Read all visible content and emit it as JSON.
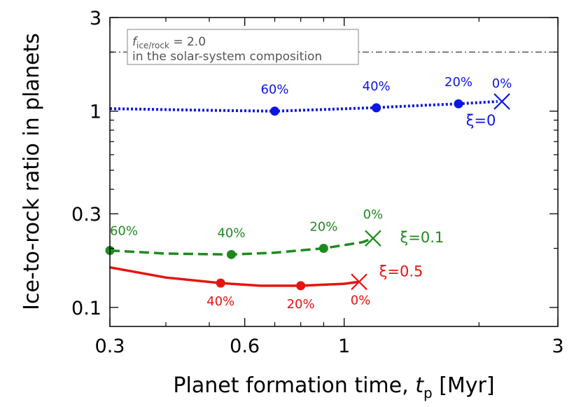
{
  "chart_data": {
    "type": "line",
    "xlabel_main": "Planet formation time, ",
    "xlabel_var": "t",
    "xlabel_sub": "p",
    "xlabel_unit": " [Myr]",
    "ylabel": "Ice-to-rock ratio in planets",
    "xscale": "log",
    "yscale": "log",
    "xlim": [
      0.3,
      3
    ],
    "ylim": [
      0.08,
      3
    ],
    "xticks": [
      {
        "v": 0.3,
        "label": "0.3"
      },
      {
        "v": 0.6,
        "label": "0.6"
      },
      {
        "v": 1,
        "label": "1"
      },
      {
        "v": 3,
        "label": "3"
      }
    ],
    "yticks": [
      {
        "v": 0.1,
        "label": "0.1"
      },
      {
        "v": 0.3,
        "label": "0.3"
      },
      {
        "v": 1,
        "label": "1"
      },
      {
        "v": 3,
        "label": "3"
      }
    ],
    "xminor": [
      0.4,
      0.5,
      0.7,
      0.8,
      0.9,
      2
    ],
    "yminor": [
      0.2,
      0.4,
      0.5,
      0.6,
      0.7,
      0.8,
      0.9,
      2
    ],
    "reference_line": {
      "y": 2.0,
      "label_var": "f",
      "label_sub": "ice/rock",
      "label_value": " = 2.0",
      "label_line2": "in the solar-system composition",
      "color": "#555555"
    },
    "series": [
      {
        "name": "ξ=0",
        "color": "#0b16e6",
        "style": "dotted",
        "curve": [
          [
            0.3,
            1.03
          ],
          [
            0.5,
            1.01
          ],
          [
            0.7,
            1.0
          ],
          [
            0.9,
            1.02
          ],
          [
            1.15,
            1.04
          ],
          [
            1.5,
            1.07
          ],
          [
            1.8,
            1.09
          ],
          [
            2.2,
            1.12
          ]
        ],
        "points": [
          {
            "x": 0.7,
            "y": 1.0,
            "label": "60%"
          },
          {
            "x": 1.18,
            "y": 1.04,
            "label": "40%"
          },
          {
            "x": 1.8,
            "y": 1.09,
            "label": "20%"
          }
        ],
        "end": {
          "x": 2.25,
          "y": 1.12,
          "label": "0%"
        }
      },
      {
        "name": "ξ=0.1",
        "color": "#1e8a1e",
        "style": "dashed",
        "curve": [
          [
            0.3,
            0.195
          ],
          [
            0.4,
            0.188
          ],
          [
            0.56,
            0.186
          ],
          [
            0.7,
            0.19
          ],
          [
            0.9,
            0.2
          ],
          [
            1.1,
            0.215
          ],
          [
            1.16,
            0.225
          ]
        ],
        "points": [
          {
            "x": 0.3,
            "y": 0.195,
            "label": "60%"
          },
          {
            "x": 0.56,
            "y": 0.186,
            "label": "40%"
          },
          {
            "x": 0.9,
            "y": 0.2,
            "label": "20%"
          }
        ],
        "end": {
          "x": 1.16,
          "y": 0.225,
          "label": "0%"
        }
      },
      {
        "name": "ξ=0.5",
        "color": "#e6140f",
        "style": "solid",
        "curve": [
          [
            0.3,
            0.16
          ],
          [
            0.4,
            0.142
          ],
          [
            0.53,
            0.133
          ],
          [
            0.65,
            0.129
          ],
          [
            0.8,
            0.129
          ],
          [
            1.0,
            0.132
          ],
          [
            1.08,
            0.135
          ]
        ],
        "points": [
          {
            "x": 0.53,
            "y": 0.133,
            "label": "40%"
          },
          {
            "x": 0.8,
            "y": 0.129,
            "label": "20%"
          }
        ],
        "end": {
          "x": 1.08,
          "y": 0.135,
          "label": "0%"
        }
      }
    ]
  }
}
